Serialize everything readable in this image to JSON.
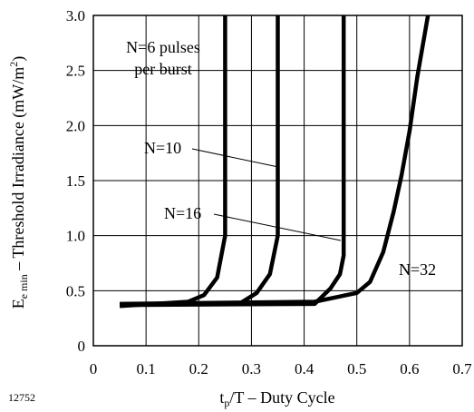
{
  "figure_id": "12752",
  "chart_data": {
    "type": "line",
    "title": "",
    "xlabel": {
      "main": "t",
      "sub": "p",
      "rest": "/T – Duty Cycle"
    },
    "ylabel": {
      "main": "E",
      "sub": "e min",
      "rest": "  –  Threshold Irradiance (mW/m",
      "sup": "2",
      "tail": ")"
    },
    "xlim": [
      0,
      0.7
    ],
    "ylim": [
      0,
      3.0
    ],
    "xticks": [
      0,
      0.1,
      0.2,
      0.3,
      0.4,
      0.5,
      0.6,
      0.7
    ],
    "xtick_labels": [
      "0",
      "0.1",
      "0.2",
      "0.3",
      "0.4",
      "0.5",
      "0.6",
      "0.7"
    ],
    "yticks": [
      0,
      0.5,
      1.0,
      1.5,
      2.0,
      2.5,
      3.0
    ],
    "ytick_labels": [
      "0",
      "0.5",
      "1.0",
      "1.5",
      "2.0",
      "2.5",
      "3.0"
    ],
    "grid": true,
    "line_color": "#000000",
    "series": [
      {
        "name": "N=6 pulses per burst",
        "x": [
          0.05,
          0.18,
          0.21,
          0.235,
          0.25,
          0.25
        ],
        "y": [
          0.36,
          0.4,
          0.46,
          0.62,
          1.0,
          3.0
        ]
      },
      {
        "name": "N=10",
        "x": [
          0.05,
          0.28,
          0.31,
          0.335,
          0.35,
          0.35
        ],
        "y": [
          0.37,
          0.39,
          0.48,
          0.65,
          1.0,
          3.0
        ]
      },
      {
        "name": "N=16",
        "x": [
          0.05,
          0.42,
          0.45,
          0.468,
          0.475,
          0.475
        ],
        "y": [
          0.37,
          0.38,
          0.52,
          0.65,
          0.82,
          3.0
        ]
      },
      {
        "name": "N=32",
        "x": [
          0.05,
          0.42,
          0.47,
          0.5,
          0.525,
          0.55,
          0.57,
          0.585,
          0.6,
          0.615,
          0.635
        ],
        "y": [
          0.38,
          0.4,
          0.45,
          0.48,
          0.58,
          0.85,
          1.22,
          1.55,
          1.95,
          2.45,
          3.0
        ]
      }
    ],
    "annotations": [
      {
        "lines": [
          "N=6 pulses",
          "per burst"
        ]
      },
      {
        "lines": [
          "N=10"
        ]
      },
      {
        "lines": [
          "N=16"
        ]
      },
      {
        "lines": [
          "N=32"
        ]
      }
    ]
  }
}
